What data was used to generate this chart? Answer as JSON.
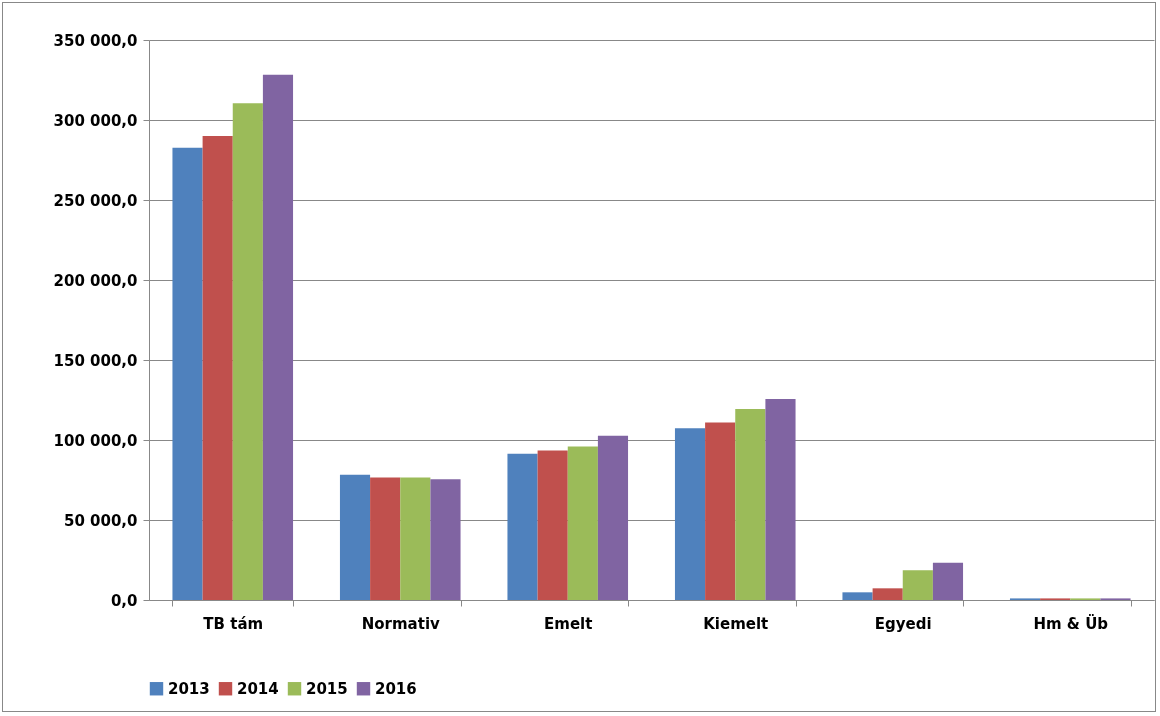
{
  "chart_data": {
    "type": "bar",
    "categories": [
      "TB tám",
      "Normativ",
      "Emelt",
      "Kiemelt",
      "Egyedi",
      "Hm & Üb"
    ],
    "series": [
      {
        "name": "2013",
        "color": "#4f81bd",
        "values": [
          282700,
          78300,
          91400,
          107300,
          4800,
          1000
        ]
      },
      {
        "name": "2014",
        "color": "#c0504d",
        "values": [
          290000,
          76600,
          93400,
          111000,
          7300,
          1000
        ]
      },
      {
        "name": "2015",
        "color": "#9bbb59",
        "values": [
          310400,
          76600,
          95900,
          119300,
          18600,
          1000
        ]
      },
      {
        "name": "2016",
        "color": "#8064a2",
        "values": [
          328300,
          75500,
          102600,
          125700,
          23300,
          1000
        ]
      }
    ],
    "ylim": [
      0,
      350000
    ],
    "yticks": [
      {
        "value": 0,
        "label": "0,0"
      },
      {
        "value": 50000,
        "label": "50 000,0"
      },
      {
        "value": 100000,
        "label": "100 000,0"
      },
      {
        "value": 150000,
        "label": "150 000,0"
      },
      {
        "value": 200000,
        "label": "200 000,0"
      },
      {
        "value": 250000,
        "label": "250 000,0"
      },
      {
        "value": 300000,
        "label": "300 000,0"
      },
      {
        "value": 350000,
        "label": "350 000,0"
      }
    ],
    "grid": "y",
    "legend": "bottom"
  }
}
